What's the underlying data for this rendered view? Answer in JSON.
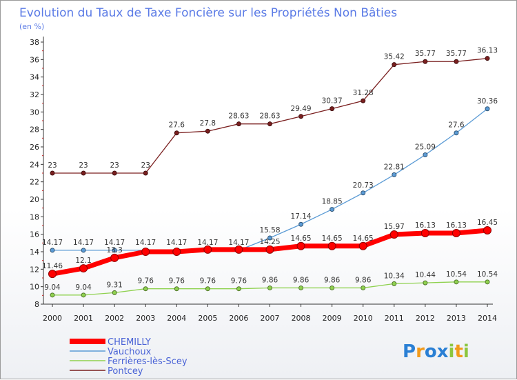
{
  "chart_data": {
    "type": "line",
    "title": "Evolution du Taux de Taxe Foncière sur les Propriétés Non Bâties",
    "subtitle": "(en %)",
    "x": [
      2000,
      2001,
      2002,
      2003,
      2004,
      2005,
      2006,
      2007,
      2008,
      2009,
      2010,
      2011,
      2012,
      2013,
      2014
    ],
    "ylim": [
      8,
      38
    ],
    "yticks": [
      8,
      10,
      12,
      14,
      16,
      18,
      20,
      22,
      24,
      26,
      28,
      30,
      32,
      34,
      36,
      38
    ],
    "grid": false,
    "legend_position": "bottom-left",
    "series": [
      {
        "name": "CHEMILLY",
        "color": "#ff0000",
        "values": [
          11.46,
          12.1,
          13.3,
          14.0,
          14.0,
          14.25,
          14.25,
          14.25,
          14.65,
          14.65,
          14.65,
          15.97,
          16.13,
          16.13,
          16.45
        ],
        "labels": [
          "11.46",
          "12.1",
          "13.3",
          "",
          "",
          "",
          "",
          "14.25",
          "14.65",
          "14.65",
          "14.65",
          "15.97",
          "16.13",
          "16.13",
          "16.45"
        ]
      },
      {
        "name": "Vauchoux",
        "color": "#5b9bd5",
        "values": [
          14.17,
          14.17,
          14.17,
          14.17,
          14.17,
          14.17,
          14.17,
          15.58,
          17.14,
          18.85,
          20.73,
          22.81,
          25.09,
          27.6,
          30.36
        ],
        "labels": [
          "14.17",
          "14.17",
          "14.17",
          "14.17",
          "14.17",
          "14.17",
          "14.17",
          "15.58",
          "17.14",
          "18.85",
          "20.73",
          "22.81",
          "25.09",
          "27.6",
          "30.36"
        ]
      },
      {
        "name": "Ferrières-lès-Scey",
        "color": "#8fd14f",
        "values": [
          9.04,
          9.04,
          9.31,
          9.76,
          9.76,
          9.76,
          9.76,
          9.86,
          9.86,
          9.86,
          9.86,
          10.34,
          10.44,
          10.54,
          10.54
        ],
        "labels": [
          "9.04",
          "9.04",
          "9.31",
          "9.76",
          "9.76",
          "9.76",
          "9.76",
          "9.86",
          "9.86",
          "9.86",
          "9.86",
          "10.34",
          "10.44",
          "10.54",
          "10.54"
        ]
      },
      {
        "name": "Pontcey",
        "color": "#7a1f1f",
        "values": [
          23,
          23,
          23,
          23,
          27.6,
          27.8,
          28.63,
          28.63,
          29.49,
          30.37,
          31.28,
          35.42,
          35.77,
          35.77,
          36.13
        ],
        "labels": [
          "23",
          "23",
          "23",
          "23",
          "27.6",
          "27.8",
          "28.63",
          "28.63",
          "29.49",
          "30.37",
          "31.28",
          "35.42",
          "35.77",
          "35.77",
          "36.13"
        ]
      }
    ]
  },
  "logo": {
    "text": "Proxiti",
    "letters": [
      "P",
      "r",
      "o",
      "x",
      "i",
      "t",
      "i"
    ],
    "colors": [
      "#2a7fd4",
      "#f29a1a",
      "#2a7fd4",
      "#2a7fd4",
      "#8cc63f",
      "#f29a1a",
      "#8cc63f"
    ]
  }
}
